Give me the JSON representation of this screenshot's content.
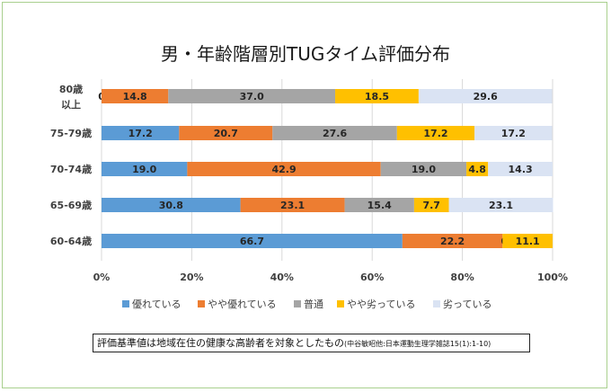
{
  "chart_data": {
    "type": "bar",
    "orientation": "horizontal",
    "stacked": "percent",
    "title": "男・年齢階層別TUGタイム評価分布",
    "categories": [
      "80歳以上",
      "75-79歳",
      "70-74歳",
      "65-69歳",
      "60-64歳"
    ],
    "x_ticks": [
      "0%",
      "20%",
      "40%",
      "60%",
      "80%",
      "100%"
    ],
    "xlim": [
      0,
      100
    ],
    "grid": "vertical",
    "legend_position": "bottom",
    "series": [
      {
        "name": "優れている",
        "color": "#5b9bd5",
        "values": [
          0.0,
          17.2,
          19.0,
          30.8,
          66.7
        ]
      },
      {
        "name": "やや優れている",
        "color": "#ed7d31",
        "values": [
          14.8,
          20.7,
          42.9,
          23.1,
          22.2
        ]
      },
      {
        "name": "普通",
        "color": "#a5a5a5",
        "values": [
          37.0,
          27.6,
          19.0,
          15.4,
          0.0
        ]
      },
      {
        "name": "やや劣っている",
        "color": "#ffc000",
        "values": [
          18.5,
          17.2,
          4.8,
          7.7,
          11.1
        ]
      },
      {
        "name": "劣っている",
        "color": "#dae3f3",
        "values": [
          29.6,
          17.2,
          14.3,
          23.1,
          0
        ]
      }
    ],
    "data_labels": [
      [
        "0.0",
        "14.8",
        "37.0",
        "18.5",
        "29.6"
      ],
      [
        "17.2",
        "20.7",
        "27.6",
        "17.2",
        "17.2"
      ],
      [
        "19.0",
        "42.9",
        "19.0",
        "4.8",
        "14.3"
      ],
      [
        "30.8",
        "23.1",
        "15.4",
        "7.7",
        "23.1"
      ],
      [
        "66.7",
        "22.2",
        "0.0",
        "11.1",
        ""
      ]
    ]
  },
  "note": {
    "main": "評価基準値は地域在住の健康な高齢者を対象としたもの",
    "source": "(中谷敏昭他:日本運動生理学雑誌15(1):1-10)"
  }
}
